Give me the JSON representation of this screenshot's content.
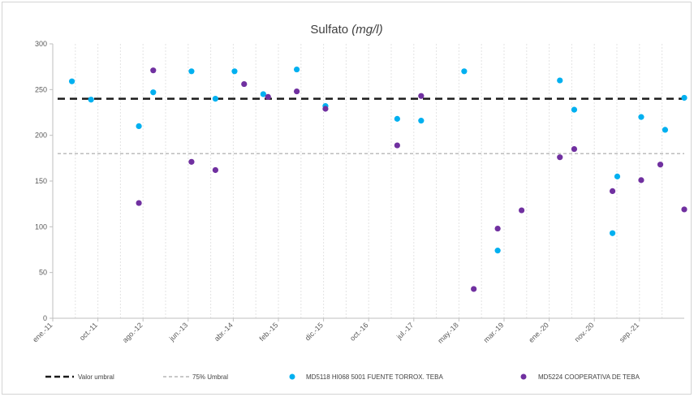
{
  "chart_data": {
    "type": "scatter",
    "title": "Sulfato",
    "title_unit": "(mg/l)",
    "xlabel": "",
    "ylabel": "",
    "ylim": [
      0,
      300
    ],
    "yticks": [
      0,
      50,
      100,
      150,
      200,
      250,
      300
    ],
    "grid": "vertical",
    "legend_position": "bottom",
    "x_ticks": [
      "ene.-11",
      "oct.-11",
      "ago.-12",
      "jun.-13",
      "abr.-14",
      "feb.-15",
      "dic.-15",
      "oct.-16",
      "jul.-17",
      "may.-18",
      "mar.-19",
      "ene.-20",
      "nov.-20",
      "sep.-21"
    ],
    "thresholds": [
      {
        "name": "Valor umbral",
        "value": 240,
        "color": "#1a1a1a",
        "style": "dashed-bold"
      },
      {
        "name": "75% Umbral",
        "value": 180,
        "color": "#a6a6a6",
        "style": "dashed-thin"
      }
    ],
    "series": [
      {
        "name": "MD5118 HI068 5001 FUENTE TORROX. TEBA",
        "color": "#00b0f0",
        "points": [
          {
            "x": "2011-05",
            "y": 259
          },
          {
            "x": "2011-09",
            "y": 239
          },
          {
            "x": "2012-07",
            "y": 210
          },
          {
            "x": "2012-10",
            "y": 247
          },
          {
            "x": "2013-06",
            "y": 270
          },
          {
            "x": "2013-11",
            "y": 240
          },
          {
            "x": "2014-03",
            "y": 270
          },
          {
            "x": "2014-09",
            "y": 245
          },
          {
            "x": "2015-04",
            "y": 272
          },
          {
            "x": "2015-10",
            "y": 232
          },
          {
            "x": "2017-01",
            "y": 218
          },
          {
            "x": "2017-06",
            "y": 216
          },
          {
            "x": "2018-03",
            "y": 270
          },
          {
            "x": "2018-10",
            "y": 74
          },
          {
            "x": "2019-11",
            "y": 260
          },
          {
            "x": "2020-02",
            "y": 228
          },
          {
            "x": "2020-10",
            "y": 93
          },
          {
            "x": "2020-11",
            "y": 155
          },
          {
            "x": "2021-04",
            "y": 220
          },
          {
            "x": "2021-09",
            "y": 206
          },
          {
            "x": "2022-01",
            "y": 241
          }
        ]
      },
      {
        "name": "MD5224 COOPERATIVA DE TEBA",
        "color": "#7030a0",
        "points": [
          {
            "x": "2012-07",
            "y": 126
          },
          {
            "x": "2012-10",
            "y": 271
          },
          {
            "x": "2013-06",
            "y": 171
          },
          {
            "x": "2013-11",
            "y": 162
          },
          {
            "x": "2014-05",
            "y": 256
          },
          {
            "x": "2014-10",
            "y": 242
          },
          {
            "x": "2015-04",
            "y": 248
          },
          {
            "x": "2015-10",
            "y": 229
          },
          {
            "x": "2017-01",
            "y": 189
          },
          {
            "x": "2017-06",
            "y": 243
          },
          {
            "x": "2018-05",
            "y": 32
          },
          {
            "x": "2018-10",
            "y": 98
          },
          {
            "x": "2019-03",
            "y": 118
          },
          {
            "x": "2019-11",
            "y": 176
          },
          {
            "x": "2020-02",
            "y": 185
          },
          {
            "x": "2020-10",
            "y": 139
          },
          {
            "x": "2021-04",
            "y": 151
          },
          {
            "x": "2021-08",
            "y": 168
          },
          {
            "x": "2022-01",
            "y": 119
          }
        ]
      }
    ]
  }
}
